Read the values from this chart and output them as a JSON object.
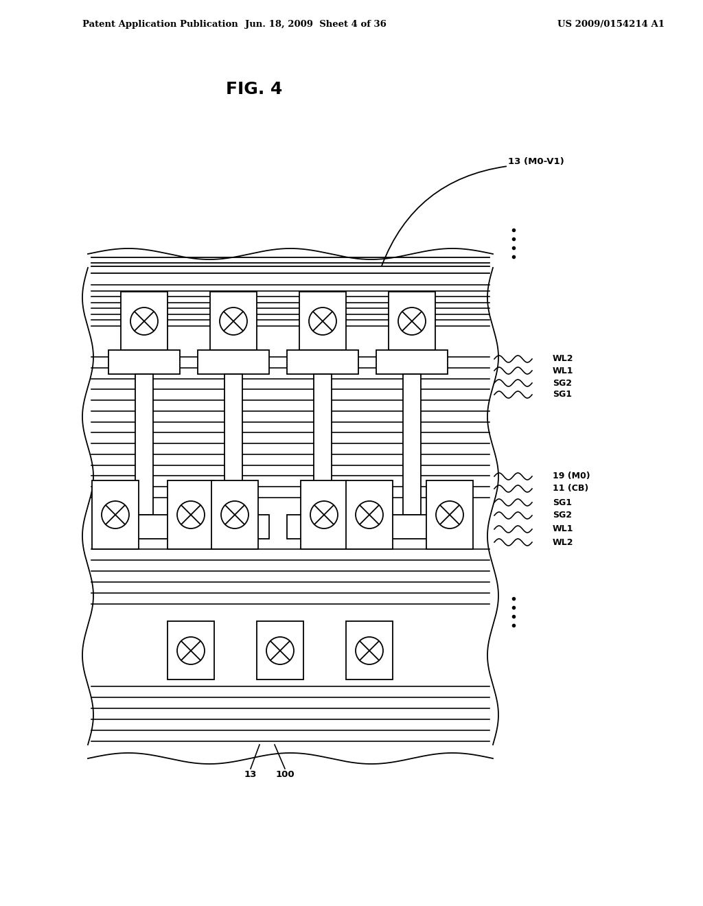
{
  "bg_color": "#ffffff",
  "header_left": "Patent Application Publication",
  "header_mid": "Jun. 18, 2009  Sheet 4 of 36",
  "header_right": "US 2009/0154214 A1",
  "fig_label": "FIG. 4",
  "label_13_MO_V1": "13 (M0-V1)",
  "label_13": "13",
  "label_100": "100",
  "right_labels": [
    "WL2",
    "WL1",
    "SG2",
    "SG1",
    "19 (M0)",
    "11 (CB)",
    "SG1",
    "SG2",
    "WL1",
    "WL2"
  ],
  "line_color": "#000000",
  "lw": 1.3
}
